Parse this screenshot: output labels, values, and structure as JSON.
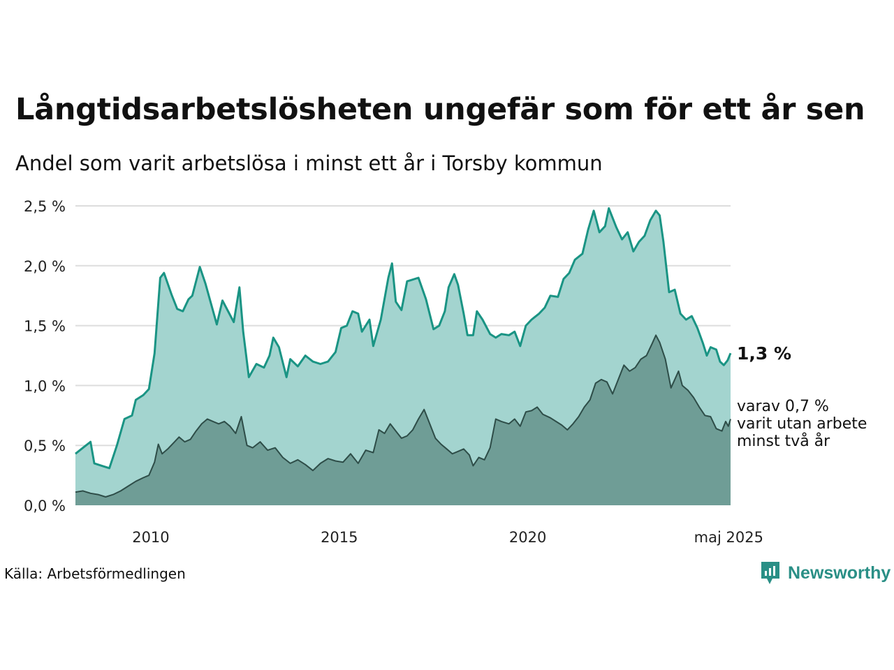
{
  "title": "Långtidsarbetslösheten ungefär som för ett år sen",
  "subtitle": "Andel som varit arbetslösa i minst ett år i Torsby kommun",
  "source": "Källa: Arbetsförmedlingen",
  "brand": "Newsworthy",
  "colors": {
    "total_line": "#1a9484",
    "total_fill": "#a3d4cf",
    "long_line": "#2e4d48",
    "long_fill": "#6f9d96",
    "grid": "#dddddd"
  },
  "chart_data": {
    "type": "area",
    "xlabel": "",
    "ylabel": "",
    "ylim": [
      0,
      2.5
    ],
    "y_ticks": [
      "0,0 %",
      "0,5 %",
      "1,0 %",
      "1,5 %",
      "2,0 %",
      "2,5 %"
    ],
    "y_tick_values": [
      0,
      0.5,
      1.0,
      1.5,
      2.0,
      2.5
    ],
    "x_ticks": [
      "2010",
      "2015",
      "2020",
      "maj 2025"
    ],
    "x_tick_values": [
      2010.0,
      2015.0,
      2020.0,
      2025.33
    ],
    "xlim": [
      2008.0,
      2025.38
    ],
    "grid": true,
    "end_label_total": "1,3 %",
    "end_label_long": [
      "varav 0,7 %",
      "varit utan arbete",
      "minst två år"
    ],
    "series": [
      {
        "key": "total",
        "points": [
          [
            2008.0,
            0.43
          ],
          [
            2008.2,
            0.48
          ],
          [
            2008.4,
            0.53
          ],
          [
            2008.5,
            0.35
          ],
          [
            2008.7,
            0.33
          ],
          [
            2008.9,
            0.31
          ],
          [
            2009.1,
            0.5
          ],
          [
            2009.3,
            0.72
          ],
          [
            2009.5,
            0.75
          ],
          [
            2009.6,
            0.88
          ],
          [
            2009.8,
            0.92
          ],
          [
            2009.95,
            0.97
          ],
          [
            2010.1,
            1.27
          ],
          [
            2010.25,
            1.9
          ],
          [
            2010.35,
            1.94
          ],
          [
            2010.45,
            1.85
          ],
          [
            2010.55,
            1.76
          ],
          [
            2010.7,
            1.64
          ],
          [
            2010.85,
            1.62
          ],
          [
            2011.0,
            1.72
          ],
          [
            2011.1,
            1.75
          ],
          [
            2011.3,
            1.99
          ],
          [
            2011.45,
            1.85
          ],
          [
            2011.6,
            1.68
          ],
          [
            2011.75,
            1.51
          ],
          [
            2011.9,
            1.71
          ],
          [
            2012.05,
            1.62
          ],
          [
            2012.2,
            1.53
          ],
          [
            2012.35,
            1.82
          ],
          [
            2012.45,
            1.45
          ],
          [
            2012.6,
            1.07
          ],
          [
            2012.8,
            1.18
          ],
          [
            2013.0,
            1.15
          ],
          [
            2013.15,
            1.25
          ],
          [
            2013.25,
            1.4
          ],
          [
            2013.4,
            1.32
          ],
          [
            2013.6,
            1.07
          ],
          [
            2013.7,
            1.22
          ],
          [
            2013.9,
            1.16
          ],
          [
            2014.1,
            1.25
          ],
          [
            2014.3,
            1.2
          ],
          [
            2014.5,
            1.18
          ],
          [
            2014.7,
            1.2
          ],
          [
            2014.9,
            1.28
          ],
          [
            2015.05,
            1.48
          ],
          [
            2015.2,
            1.5
          ],
          [
            2015.35,
            1.62
          ],
          [
            2015.5,
            1.6
          ],
          [
            2015.6,
            1.45
          ],
          [
            2015.8,
            1.55
          ],
          [
            2015.9,
            1.33
          ],
          [
            2016.1,
            1.55
          ],
          [
            2016.3,
            1.9
          ],
          [
            2016.4,
            2.02
          ],
          [
            2016.5,
            1.7
          ],
          [
            2016.65,
            1.63
          ],
          [
            2016.8,
            1.87
          ],
          [
            2016.9,
            1.88
          ],
          [
            2017.1,
            1.9
          ],
          [
            2017.3,
            1.72
          ],
          [
            2017.5,
            1.47
          ],
          [
            2017.65,
            1.5
          ],
          [
            2017.8,
            1.62
          ],
          [
            2017.9,
            1.82
          ],
          [
            2018.05,
            1.93
          ],
          [
            2018.15,
            1.84
          ],
          [
            2018.3,
            1.6
          ],
          [
            2018.4,
            1.42
          ],
          [
            2018.55,
            1.42
          ],
          [
            2018.65,
            1.62
          ],
          [
            2018.8,
            1.55
          ],
          [
            2019.0,
            1.43
          ],
          [
            2019.15,
            1.4
          ],
          [
            2019.3,
            1.43
          ],
          [
            2019.5,
            1.42
          ],
          [
            2019.65,
            1.45
          ],
          [
            2019.8,
            1.33
          ],
          [
            2019.95,
            1.5
          ],
          [
            2020.1,
            1.55
          ],
          [
            2020.3,
            1.6
          ],
          [
            2020.45,
            1.65
          ],
          [
            2020.6,
            1.75
          ],
          [
            2020.8,
            1.74
          ],
          [
            2020.95,
            1.89
          ],
          [
            2021.1,
            1.94
          ],
          [
            2021.25,
            2.05
          ],
          [
            2021.45,
            2.1
          ],
          [
            2021.6,
            2.3
          ],
          [
            2021.75,
            2.46
          ],
          [
            2021.9,
            2.28
          ],
          [
            2022.05,
            2.33
          ],
          [
            2022.15,
            2.48
          ],
          [
            2022.35,
            2.32
          ],
          [
            2022.5,
            2.22
          ],
          [
            2022.65,
            2.28
          ],
          [
            2022.8,
            2.12
          ],
          [
            2022.95,
            2.2
          ],
          [
            2023.1,
            2.25
          ],
          [
            2023.25,
            2.38
          ],
          [
            2023.4,
            2.46
          ],
          [
            2023.5,
            2.42
          ],
          [
            2023.6,
            2.2
          ],
          [
            2023.75,
            1.78
          ],
          [
            2023.9,
            1.8
          ],
          [
            2024.05,
            1.6
          ],
          [
            2024.2,
            1.55
          ],
          [
            2024.35,
            1.58
          ],
          [
            2024.5,
            1.48
          ],
          [
            2024.65,
            1.35
          ],
          [
            2024.75,
            1.25
          ],
          [
            2024.85,
            1.32
          ],
          [
            2025.0,
            1.3
          ],
          [
            2025.1,
            1.2
          ],
          [
            2025.2,
            1.17
          ],
          [
            2025.3,
            1.21
          ],
          [
            2025.38,
            1.27
          ]
        ]
      },
      {
        "key": "long",
        "points": [
          [
            2008.0,
            0.11
          ],
          [
            2008.2,
            0.12
          ],
          [
            2008.4,
            0.1
          ],
          [
            2008.6,
            0.09
          ],
          [
            2008.8,
            0.07
          ],
          [
            2009.0,
            0.09
          ],
          [
            2009.2,
            0.12
          ],
          [
            2009.4,
            0.16
          ],
          [
            2009.6,
            0.2
          ],
          [
            2009.8,
            0.23
          ],
          [
            2009.95,
            0.25
          ],
          [
            2010.1,
            0.36
          ],
          [
            2010.2,
            0.51
          ],
          [
            2010.3,
            0.43
          ],
          [
            2010.45,
            0.47
          ],
          [
            2010.6,
            0.52
          ],
          [
            2010.75,
            0.57
          ],
          [
            2010.9,
            0.53
          ],
          [
            2011.05,
            0.55
          ],
          [
            2011.2,
            0.62
          ],
          [
            2011.35,
            0.68
          ],
          [
            2011.5,
            0.72
          ],
          [
            2011.65,
            0.7
          ],
          [
            2011.8,
            0.68
          ],
          [
            2011.95,
            0.7
          ],
          [
            2012.1,
            0.66
          ],
          [
            2012.25,
            0.6
          ],
          [
            2012.4,
            0.74
          ],
          [
            2012.55,
            0.5
          ],
          [
            2012.7,
            0.48
          ],
          [
            2012.9,
            0.53
          ],
          [
            2013.1,
            0.46
          ],
          [
            2013.3,
            0.48
          ],
          [
            2013.5,
            0.4
          ],
          [
            2013.7,
            0.35
          ],
          [
            2013.9,
            0.38
          ],
          [
            2014.1,
            0.34
          ],
          [
            2014.3,
            0.29
          ],
          [
            2014.5,
            0.35
          ],
          [
            2014.7,
            0.39
          ],
          [
            2014.9,
            0.37
          ],
          [
            2015.1,
            0.36
          ],
          [
            2015.3,
            0.43
          ],
          [
            2015.5,
            0.35
          ],
          [
            2015.7,
            0.46
          ],
          [
            2015.9,
            0.44
          ],
          [
            2016.05,
            0.63
          ],
          [
            2016.2,
            0.6
          ],
          [
            2016.35,
            0.68
          ],
          [
            2016.5,
            0.62
          ],
          [
            2016.65,
            0.56
          ],
          [
            2016.8,
            0.58
          ],
          [
            2016.95,
            0.63
          ],
          [
            2017.1,
            0.72
          ],
          [
            2017.25,
            0.8
          ],
          [
            2017.4,
            0.68
          ],
          [
            2017.55,
            0.56
          ],
          [
            2017.7,
            0.51
          ],
          [
            2017.85,
            0.47
          ],
          [
            2018.0,
            0.43
          ],
          [
            2018.15,
            0.45
          ],
          [
            2018.3,
            0.47
          ],
          [
            2018.45,
            0.42
          ],
          [
            2018.55,
            0.33
          ],
          [
            2018.7,
            0.4
          ],
          [
            2018.85,
            0.38
          ],
          [
            2019.0,
            0.48
          ],
          [
            2019.15,
            0.72
          ],
          [
            2019.3,
            0.7
          ],
          [
            2019.5,
            0.68
          ],
          [
            2019.65,
            0.72
          ],
          [
            2019.8,
            0.66
          ],
          [
            2019.95,
            0.78
          ],
          [
            2020.1,
            0.79
          ],
          [
            2020.25,
            0.82
          ],
          [
            2020.4,
            0.76
          ],
          [
            2020.6,
            0.73
          ],
          [
            2020.75,
            0.7
          ],
          [
            2020.9,
            0.67
          ],
          [
            2021.05,
            0.63
          ],
          [
            2021.2,
            0.68
          ],
          [
            2021.35,
            0.74
          ],
          [
            2021.5,
            0.82
          ],
          [
            2021.65,
            0.88
          ],
          [
            2021.8,
            1.02
          ],
          [
            2021.95,
            1.05
          ],
          [
            2022.1,
            1.03
          ],
          [
            2022.25,
            0.93
          ],
          [
            2022.4,
            1.05
          ],
          [
            2022.55,
            1.17
          ],
          [
            2022.7,
            1.12
          ],
          [
            2022.85,
            1.15
          ],
          [
            2023.0,
            1.22
          ],
          [
            2023.15,
            1.25
          ],
          [
            2023.3,
            1.35
          ],
          [
            2023.4,
            1.42
          ],
          [
            2023.5,
            1.36
          ],
          [
            2023.65,
            1.22
          ],
          [
            2023.8,
            0.98
          ],
          [
            2024.0,
            1.12
          ],
          [
            2024.1,
            1.0
          ],
          [
            2024.25,
            0.96
          ],
          [
            2024.4,
            0.9
          ],
          [
            2024.55,
            0.82
          ],
          [
            2024.7,
            0.75
          ],
          [
            2024.85,
            0.74
          ],
          [
            2025.0,
            0.64
          ],
          [
            2025.15,
            0.62
          ],
          [
            2025.25,
            0.7
          ],
          [
            2025.32,
            0.66
          ],
          [
            2025.38,
            0.72
          ]
        ]
      }
    ]
  }
}
